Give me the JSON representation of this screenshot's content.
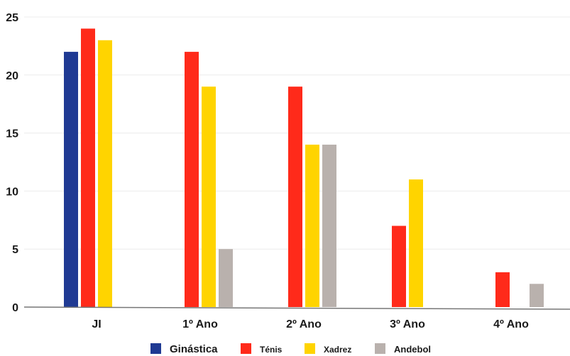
{
  "chart_data": {
    "type": "bar",
    "categories": [
      "JI",
      "1º Ano",
      "2º Ano",
      "3º Ano",
      "4º Ano"
    ],
    "series": [
      {
        "name": "Ginástica",
        "color": "#1f3a93",
        "values": [
          22,
          null,
          null,
          null,
          null
        ]
      },
      {
        "name": "Ténis",
        "color": "#ff2a1a",
        "values": [
          24,
          22,
          19,
          7,
          3
        ]
      },
      {
        "name": "Xadrez",
        "color": "#ffd400",
        "values": [
          23,
          19,
          14,
          11,
          null
        ]
      },
      {
        "name": "Andebol",
        "color": "#b9b1ad",
        "values": [
          null,
          5,
          14,
          null,
          2
        ]
      }
    ],
    "ylim": [
      0,
      25
    ],
    "yticks": [
      0,
      5,
      10,
      15,
      20,
      25
    ],
    "grid": true,
    "legend_position": "bottom",
    "title": "",
    "xlabel": "",
    "ylabel": ""
  }
}
